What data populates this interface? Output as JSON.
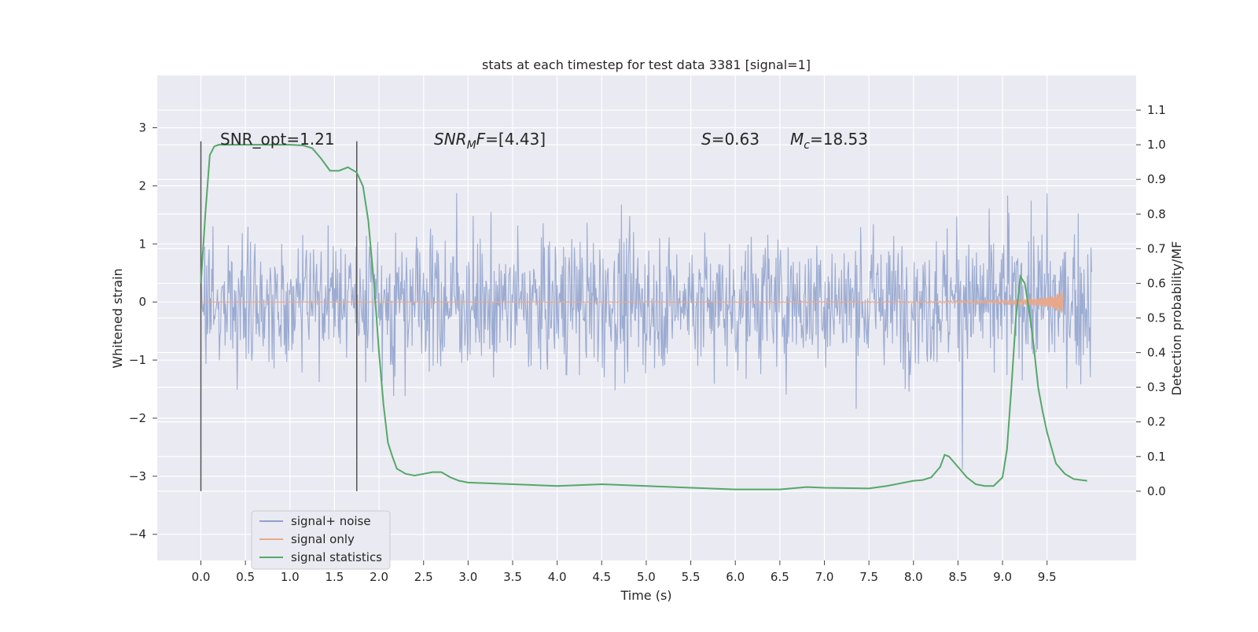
{
  "chart_data": {
    "type": "line",
    "title": "stats at each timestep for test data 3381 [signal=1]",
    "xlabel": "Time (s)",
    "ylabel": "Whitened strain",
    "ylabel_right": "Detection probability/MF",
    "xlim": [
      -0.49,
      10.5
    ],
    "ylim": [
      -4.45,
      3.9
    ],
    "ylim_right": [
      -0.2,
      1.2
    ],
    "xticks": [
      "0.0",
      "0.5",
      "1.0",
      "1.5",
      "2.0",
      "2.5",
      "3.0",
      "3.5",
      "4.0",
      "4.5",
      "5.0",
      "5.5",
      "6.0",
      "6.5",
      "7.0",
      "7.5",
      "8.0",
      "8.5",
      "9.0",
      "9.5"
    ],
    "yticks": [
      "3",
      "2",
      "1",
      "0",
      "−1",
      "−2",
      "−3",
      "−4"
    ],
    "yticks_right": [
      "1.1",
      "1.0",
      "0.9",
      "0.8",
      "0.7",
      "0.6",
      "0.5",
      "0.4",
      "0.3",
      "0.2",
      "0.1",
      "0.0"
    ],
    "grid": true,
    "legend_position": "lower-left",
    "annotations": {
      "snr_opt": "SNR_opt=1.21",
      "snr_mf_label": "SNR",
      "snr_mf_sub": "M",
      "snr_mf_f": "F",
      "snr_mf_value": "=[4.43]",
      "s_label": "S",
      "s_value": "=0.63",
      "mc_label": "M",
      "mc_sub": "c",
      "mc_value": "=18.53"
    },
    "vlines": [
      0.0,
      1.75
    ],
    "series": [
      {
        "name": "signal+ noise",
        "color": "#8da0cb",
        "axis": "left",
        "style": "noise",
        "x_range": [
          0.0,
          10.0
        ],
        "approx_amplitude": 1.0
      },
      {
        "name": "signal only",
        "color": "#e8a88c",
        "axis": "left",
        "chirp_end": 9.68,
        "peak_amplitude": 0.22,
        "x": [
          0.0,
          6.0,
          8.0,
          9.0,
          9.4,
          9.55,
          9.62,
          9.66,
          9.68
        ],
        "envelope": [
          0.0,
          0.005,
          0.01,
          0.03,
          0.06,
          0.1,
          0.15,
          0.2,
          0.22
        ]
      },
      {
        "name": "signal statistics",
        "color": "#55a868",
        "axis": "right",
        "x": [
          0.0,
          0.05,
          0.1,
          0.15,
          0.2,
          0.3,
          0.5,
          0.8,
          1.0,
          1.15,
          1.25,
          1.35,
          1.45,
          1.55,
          1.65,
          1.75,
          1.82,
          1.88,
          1.95,
          2.0,
          2.05,
          2.1,
          2.15,
          2.2,
          2.3,
          2.4,
          2.5,
          2.6,
          2.7,
          2.8,
          2.9,
          3.0,
          3.5,
          4.0,
          4.5,
          5.0,
          5.5,
          6.0,
          6.5,
          6.8,
          7.0,
          7.5,
          7.7,
          7.9,
          8.0,
          8.1,
          8.2,
          8.3,
          8.35,
          8.4,
          8.5,
          8.6,
          8.7,
          8.8,
          8.9,
          9.0,
          9.05,
          9.1,
          9.15,
          9.2,
          9.25,
          9.3,
          9.35,
          9.4,
          9.45,
          9.5,
          9.6,
          9.7,
          9.8,
          9.95
        ],
        "y": [
          0.6,
          0.8,
          0.97,
          0.995,
          1.0,
          1.0,
          1.0,
          1.0,
          1.0,
          0.998,
          0.99,
          0.96,
          0.925,
          0.925,
          0.935,
          0.92,
          0.88,
          0.78,
          0.58,
          0.4,
          0.25,
          0.14,
          0.1,
          0.065,
          0.05,
          0.045,
          0.05,
          0.055,
          0.055,
          0.04,
          0.03,
          0.025,
          0.02,
          0.015,
          0.02,
          0.015,
          0.01,
          0.005,
          0.005,
          0.012,
          0.01,
          0.008,
          0.015,
          0.025,
          0.03,
          0.032,
          0.04,
          0.07,
          0.105,
          0.1,
          0.07,
          0.04,
          0.02,
          0.015,
          0.015,
          0.04,
          0.12,
          0.3,
          0.5,
          0.62,
          0.6,
          0.52,
          0.42,
          0.3,
          0.23,
          0.17,
          0.08,
          0.05,
          0.035,
          0.03
        ]
      }
    ]
  }
}
